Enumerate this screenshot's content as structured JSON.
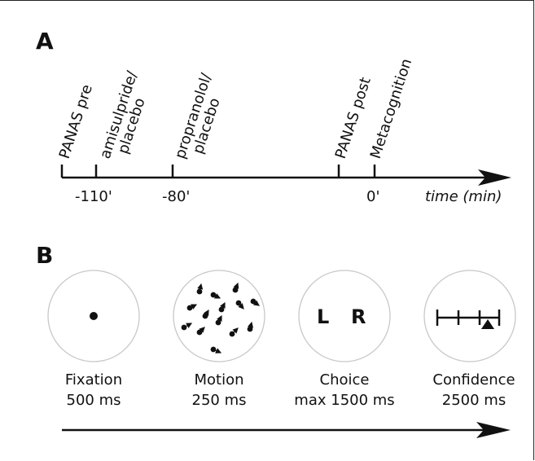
{
  "panel_a": {
    "label": "A",
    "events": [
      {
        "lines": [
          "PANAS pre"
        ]
      },
      {
        "lines": [
          "amisulpride/",
          "placebo"
        ]
      },
      {
        "lines": [
          "propranolol/",
          "placebo"
        ]
      },
      {
        "lines": [
          "PANAS post"
        ]
      },
      {
        "lines": [
          "Metacognition"
        ]
      }
    ],
    "ticks": [
      "-110'",
      "-80'",
      "0'"
    ],
    "axis_label": "time (min)"
  },
  "panel_b": {
    "label": "B",
    "steps": [
      {
        "name": "Fixation",
        "duration": "500 ms"
      },
      {
        "name": "Motion",
        "duration": "250 ms"
      },
      {
        "name": "Choice",
        "duration": "max 1500 ms"
      },
      {
        "name": "Confidence",
        "duration": "2500 ms"
      }
    ],
    "choice_left": "L",
    "choice_right": "R"
  },
  "colors": {
    "ink": "#111111",
    "circle": "#c8c8c8"
  }
}
